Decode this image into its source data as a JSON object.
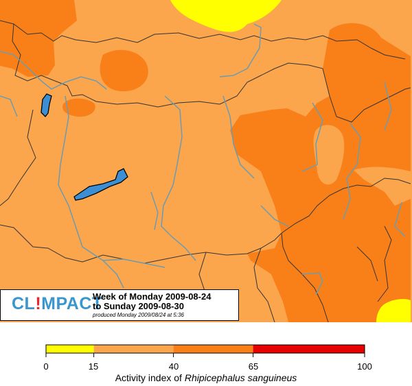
{
  "colors": {
    "band_0_15": "#ffff00",
    "band_15_40": "#fba54d",
    "band_40_65": "#f98019",
    "band_65_100": "#e60000",
    "river": "#6b9cb0",
    "lake": "#3c8fd4",
    "border": "#333333"
  },
  "info": {
    "logo_cl": "CL",
    "logo_bang": "!",
    "logo_mpact": "MPACT",
    "week_line1": "Week of Monday 2009-08-24",
    "week_line2": "to Sunday 2009-08-30",
    "produced": "produced Monday 2009/08/24 at  5:36"
  },
  "legend": {
    "ticks": [
      "0",
      "15",
      "40",
      "65",
      "100"
    ],
    "title_prefix": "Activity index of ",
    "title_species": "Rhipicephalus sanguineus",
    "scale_min": 0,
    "scale_max": 100,
    "bands": [
      {
        "from": 0,
        "to": 15,
        "color": "#ffff00"
      },
      {
        "from": 15,
        "to": 40,
        "color": "#fba54d"
      },
      {
        "from": 40,
        "to": 65,
        "color": "#f98019"
      },
      {
        "from": 65,
        "to": 100,
        "color": "#e60000"
      }
    ]
  }
}
